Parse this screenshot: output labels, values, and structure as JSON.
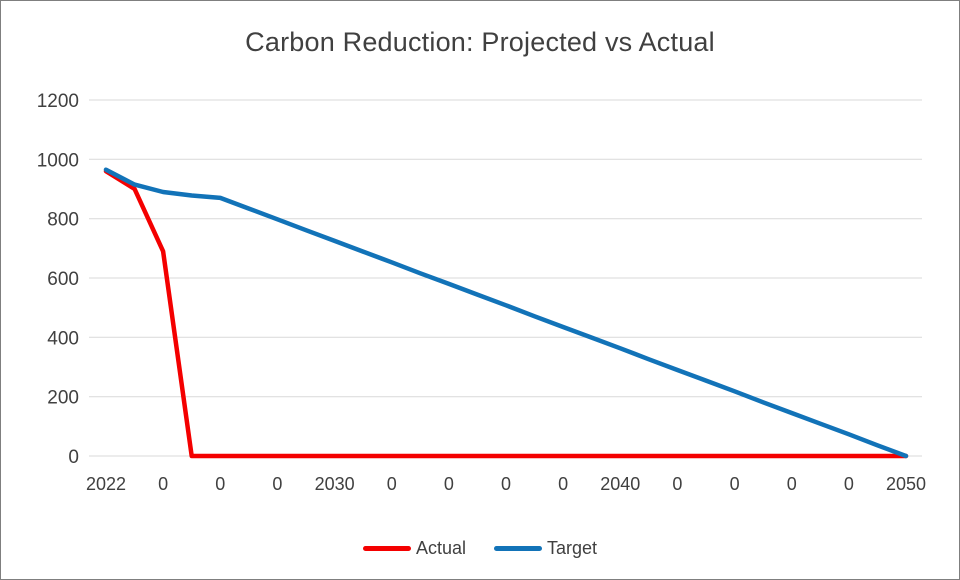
{
  "chart_data": {
    "type": "line",
    "title": "Carbon Reduction: Projected vs Actual",
    "xlabel": "",
    "ylabel": "",
    "ylim": [
      0,
      1200
    ],
    "y_ticks": [
      0,
      200,
      400,
      600,
      800,
      1000,
      1200
    ],
    "grid": "horizontal",
    "legend_position": "bottom",
    "x": [
      2022,
      2023,
      2024,
      2025,
      2026,
      2027,
      2028,
      2029,
      2030,
      2031,
      2032,
      2033,
      2034,
      2035,
      2036,
      2037,
      2038,
      2039,
      2040,
      2041,
      2042,
      2043,
      2044,
      2045,
      2046,
      2047,
      2048,
      2049,
      2050
    ],
    "x_tick_labels": [
      "2022",
      "0",
      "0",
      "0",
      "2030",
      "0",
      "0",
      "0",
      "0",
      "2040",
      "0",
      "0",
      "0",
      "0",
      "2050"
    ],
    "series": [
      {
        "name": "Actual",
        "color": "#f40000",
        "values": [
          960,
          900,
          690,
          0,
          0,
          0,
          0,
          0,
          0,
          0,
          0,
          0,
          0,
          0,
          0,
          0,
          0,
          0,
          0,
          0,
          0,
          0,
          0,
          0,
          0,
          0,
          0,
          0,
          0
        ]
      },
      {
        "name": "Target",
        "color": "#1273b8",
        "values": [
          965,
          915,
          890,
          878,
          870,
          834,
          798,
          761,
          725,
          689,
          653,
          616,
          580,
          544,
          508,
          471,
          435,
          399,
          363,
          326,
          290,
          254,
          218,
          181,
          145,
          109,
          73,
          36,
          0
        ]
      }
    ],
    "colors": {
      "gridline": "#d9d9d9",
      "axis_text": "#404040",
      "title_text": "#404040",
      "background": "#ffffff"
    }
  }
}
